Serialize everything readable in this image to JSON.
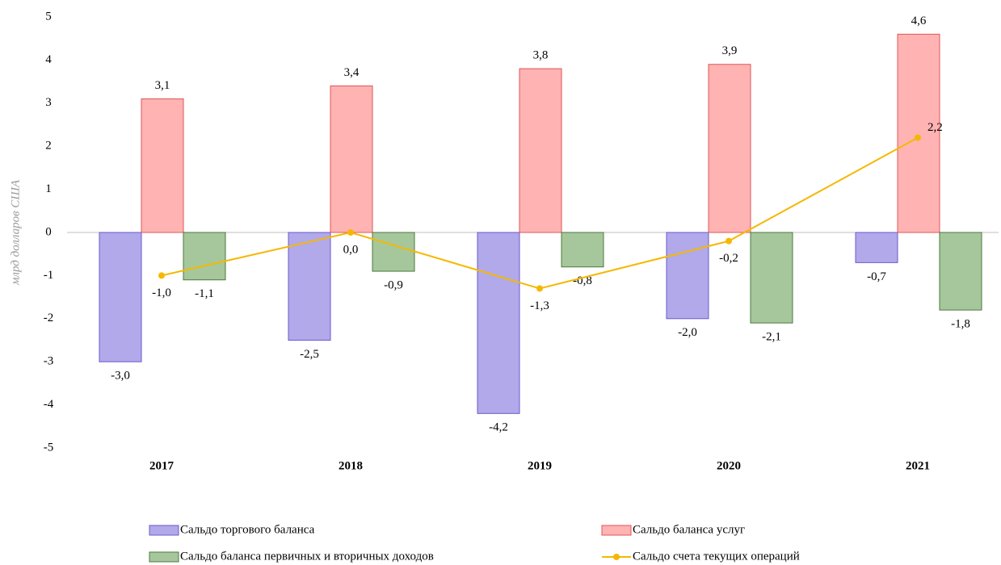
{
  "chart_data": {
    "type": "bar",
    "y_label": "млрд долларов США",
    "categories": [
      "2017",
      "2018",
      "2019",
      "2020",
      "2021"
    ],
    "ylim": [
      -5,
      5
    ],
    "yticks": [
      -5,
      -4,
      -3,
      -2,
      -1,
      0,
      1,
      2,
      3,
      4,
      5
    ],
    "series": [
      {
        "name": "Сальдо торгового баланса",
        "type": "bar",
        "color": "#b1a9ea",
        "values": [
          -3.0,
          -2.5,
          -4.2,
          -2.0,
          -0.7
        ],
        "value_labels": [
          "-3,0",
          "-2,5",
          "-4,2",
          "-2,0",
          "-0,7"
        ]
      },
      {
        "name": "Сальдо баланса услуг",
        "type": "bar",
        "color": "#ffb3b3",
        "values": [
          3.1,
          3.4,
          3.8,
          3.9,
          4.6
        ],
        "value_labels": [
          "3,1",
          "3,4",
          "3,8",
          "3,9",
          "4,6"
        ]
      },
      {
        "name": "Сальдо баланса первичных и вторичных доходов",
        "type": "bar",
        "color": "#a6c79c",
        "values": [
          -1.1,
          -0.9,
          -0.8,
          -2.1,
          -1.8
        ],
        "value_labels": [
          "-1,1",
          "-0,9",
          "-0,8",
          "-2,1",
          "-1,8"
        ]
      },
      {
        "name": "Сальдо счета текущих операций",
        "type": "line",
        "color": "#f5b800",
        "values": [
          -1.0,
          0.0,
          -1.3,
          -0.2,
          2.2
        ],
        "value_labels": [
          "-1,0",
          "0,0",
          "-1,3",
          "-0,2",
          "2,2"
        ]
      }
    ]
  }
}
